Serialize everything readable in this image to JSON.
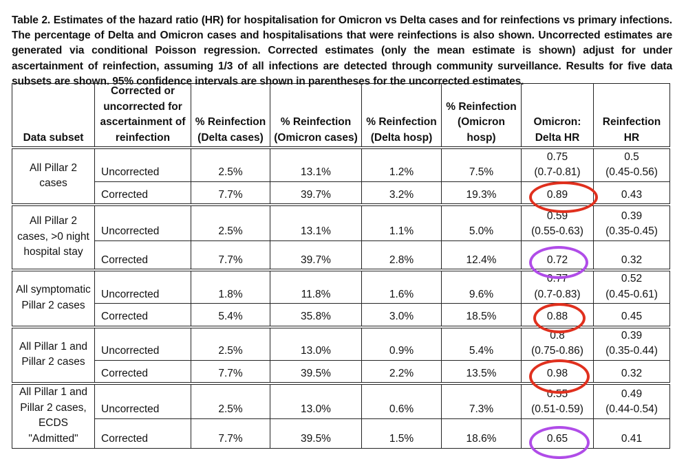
{
  "caption": "Table 2. Estimates of the hazard ratio (HR) for hospitalisation for Omicron vs Delta cases and for reinfections vs primary infections. The percentage of Delta and Omicron cases and hospitalisations that were reinfections is also shown. Uncorrected estimates are generated via conditional Poisson regression. Corrected estimates (only the mean estimate is shown) adjust for under ascertainment of reinfection, assuming 1/3 of all infections are detected through community surveillance. Results for five data subsets are shown. 95% confidence intervals are shown in parentheses for the uncorrected estimates.",
  "columns": [
    "Data subset",
    "Corrected or uncorrected for ascertainment of reinfection",
    "% Reinfection (Delta cases)",
    "% Reinfection (Omicron cases)",
    "% Reinfection (Delta hosp)",
    "% Reinfection (Omicron hosp)",
    "Omicron: Delta HR",
    "Reinfection HR"
  ],
  "groups": [
    {
      "subset": "All Pillar 2 cases",
      "rows": [
        {
          "type": "Uncorrected",
          "delta_cases": "2.5%",
          "omicron_cases": "13.1%",
          "delta_hosp": "1.2%",
          "omicron_hosp": "7.5%",
          "od_hr": "0.75",
          "od_ci": "(0.7-0.81)",
          "reinf_hr": "0.5",
          "reinf_ci": "(0.45-0.56)"
        },
        {
          "type": "Corrected",
          "delta_cases": "7.7%",
          "omicron_cases": "39.7%",
          "delta_hosp": "3.2%",
          "omicron_hosp": "19.3%",
          "od_hr": "0.89",
          "reinf_hr": "0.43",
          "annotation": "red-circle"
        }
      ]
    },
    {
      "subset": "All Pillar 2 cases, >0 night hospital stay",
      "rows": [
        {
          "type": "Uncorrected",
          "delta_cases": "2.5%",
          "omicron_cases": "13.1%",
          "delta_hosp": "1.1%",
          "omicron_hosp": "5.0%",
          "od_hr": "0.59",
          "od_ci": "(0.55-0.63)",
          "reinf_hr": "0.39",
          "reinf_ci": "(0.35-0.45)"
        },
        {
          "type": "Corrected",
          "delta_cases": "7.7%",
          "omicron_cases": "39.7%",
          "delta_hosp": "2.8%",
          "omicron_hosp": "12.4%",
          "od_hr": "0.72",
          "reinf_hr": "0.32",
          "annotation": "purple-circle"
        }
      ]
    },
    {
      "subset": "All symptomatic Pillar 2 cases",
      "rows": [
        {
          "type": "Uncorrected",
          "delta_cases": "1.8%",
          "omicron_cases": "11.8%",
          "delta_hosp": "1.6%",
          "omicron_hosp": "9.6%",
          "od_hr": "0.77",
          "od_ci": "(0.7-0.83)",
          "reinf_hr": "0.52",
          "reinf_ci": "(0.45-0.61)"
        },
        {
          "type": "Corrected",
          "delta_cases": "5.4%",
          "omicron_cases": "35.8%",
          "delta_hosp": "3.0%",
          "omicron_hosp": "18.5%",
          "od_hr": "0.88",
          "reinf_hr": "0.45",
          "annotation": "red-circle"
        }
      ]
    },
    {
      "subset": "All Pillar 1 and Pillar 2 cases",
      "rows": [
        {
          "type": "Uncorrected",
          "delta_cases": "2.5%",
          "omicron_cases": "13.0%",
          "delta_hosp": "0.9%",
          "omicron_hosp": "5.4%",
          "od_hr": "0.8",
          "od_ci": "(0.75-0.86)",
          "reinf_hr": "0.39",
          "reinf_ci": "(0.35-0.44)"
        },
        {
          "type": "Corrected",
          "delta_cases": "7.7%",
          "omicron_cases": "39.5%",
          "delta_hosp": "2.2%",
          "omicron_hosp": "13.5%",
          "od_hr": "0.98",
          "reinf_hr": "0.32",
          "annotation": "red-circle"
        }
      ]
    },
    {
      "subset": "All Pillar 1 and Pillar 2 cases, ECDS \"Admitted\"",
      "rows": [
        {
          "type": "Uncorrected",
          "delta_cases": "2.5%",
          "omicron_cases": "13.0%",
          "delta_hosp": "0.6%",
          "omicron_hosp": "7.3%",
          "od_hr": "0.55",
          "od_ci": "(0.51-0.59)",
          "reinf_hr": "0.49",
          "reinf_ci": "(0.44-0.54)"
        },
        {
          "type": "Corrected",
          "delta_cases": "7.7%",
          "omicron_cases": "39.5%",
          "delta_hosp": "1.5%",
          "omicron_hosp": "18.6%",
          "od_hr": "0.65",
          "reinf_hr": "0.41",
          "annotation": "purple-circle"
        }
      ]
    }
  ],
  "annotation_colors": {
    "red-circle": "#e0301e",
    "purple-circle": "#b04ce8"
  }
}
